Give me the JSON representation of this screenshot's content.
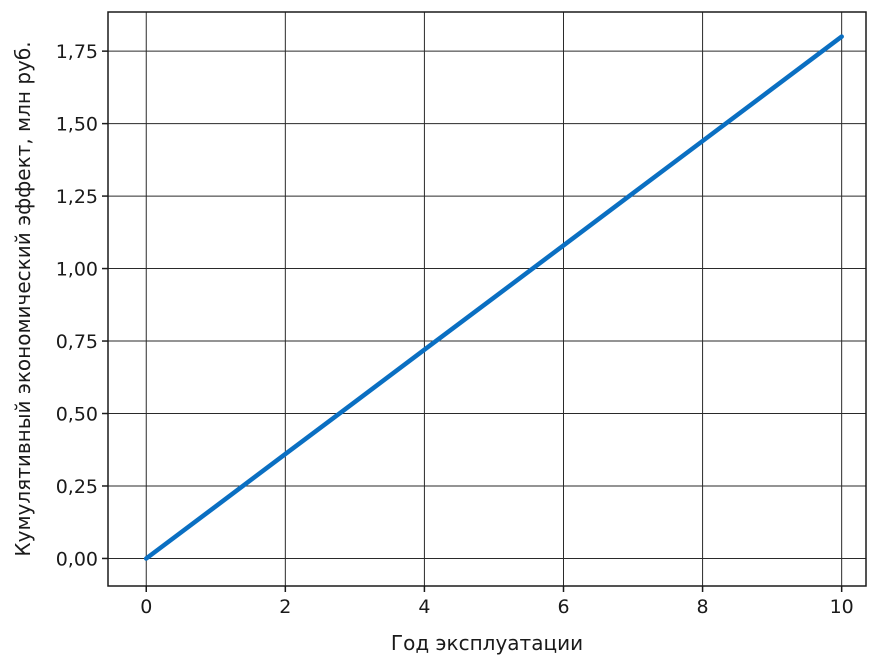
{
  "chart_data": {
    "type": "line",
    "title": "",
    "xlabel": "Год эксплуатации",
    "ylabel": "Кумулятивный экономический эффект, млн руб.",
    "xlim": [
      -0.55,
      10.35
    ],
    "ylim": [
      -0.095,
      1.885
    ],
    "x_ticks": [
      0,
      2,
      4,
      6,
      8,
      10
    ],
    "x_tick_labels": [
      "0",
      "2",
      "4",
      "6",
      "8",
      "10"
    ],
    "x_grid": [
      0,
      2,
      4,
      6,
      8,
      10
    ],
    "y_ticks": [
      0,
      0.25,
      0.5,
      0.75,
      1.0,
      1.25,
      1.5,
      1.75
    ],
    "y_tick_labels": [
      "0,00",
      "0,25",
      "0,50",
      "0,75",
      "1,00",
      "1,25",
      "1,50",
      "1,75"
    ],
    "grid": true,
    "series": [
      {
        "color": "#0a6fc2",
        "x": [
          0,
          1,
          2,
          3,
          4,
          5,
          6,
          7,
          8,
          9,
          10
        ],
        "y": [
          0,
          0.18,
          0.36,
          0.54,
          0.72,
          0.9,
          1.08,
          1.26,
          1.44,
          1.62,
          1.8
        ]
      }
    ]
  }
}
